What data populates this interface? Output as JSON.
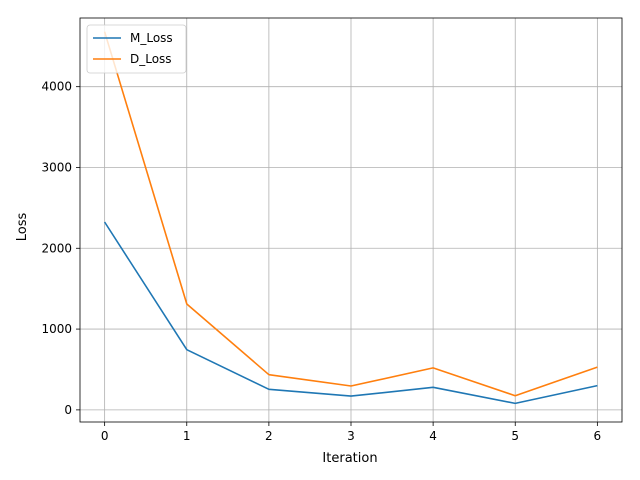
{
  "chart_data": {
    "type": "line",
    "x": [
      0,
      1,
      2,
      3,
      4,
      5,
      6
    ],
    "series": [
      {
        "name": "M_Loss",
        "color": "#1f77b4",
        "values": [
          2325,
          745,
          255,
          170,
          280,
          80,
          300
        ]
      },
      {
        "name": "D_Loss",
        "color": "#ff7f0e",
        "values": [
          4680,
          1310,
          435,
          295,
          520,
          175,
          530
        ]
      }
    ],
    "title": "",
    "xlabel": "Iteration",
    "ylabel": "Loss",
    "xlim": [
      -0.3,
      6.3
    ],
    "ylim": [
      -150,
      4850
    ],
    "xticks": [
      0,
      1,
      2,
      3,
      4,
      5,
      6
    ],
    "yticks": [
      0,
      1000,
      2000,
      3000,
      4000
    ],
    "grid": true,
    "legend": "top-left"
  }
}
